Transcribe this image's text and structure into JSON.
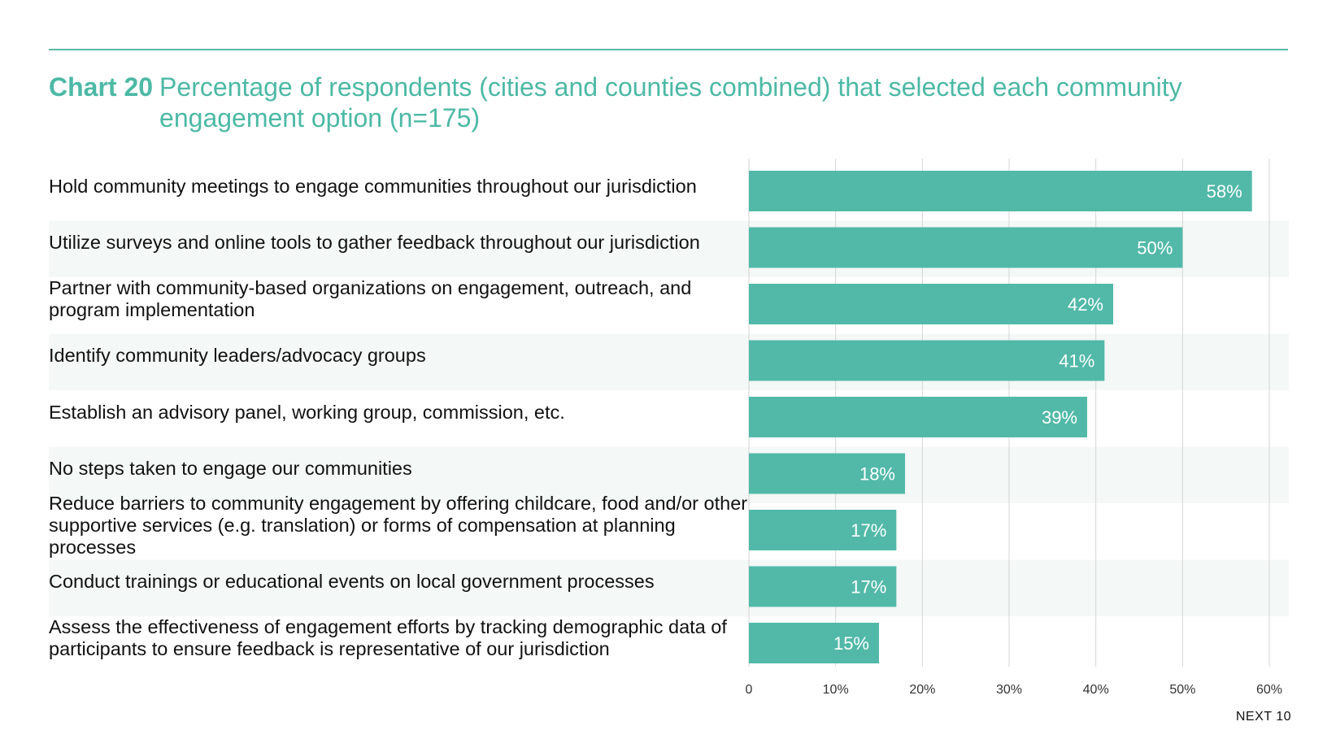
{
  "title": {
    "prefix": "Chart 20",
    "text": "Percentage of respondents (cities and counties combined) that selected each community engagement option (n=175)"
  },
  "footer": "NEXT 10",
  "colors": {
    "bar": "#52b9a8",
    "title": "#4cb9a5",
    "stripe": "#f4f8f7",
    "grid": "#d5d5d5"
  },
  "chart_data": {
    "type": "bar",
    "orientation": "horizontal",
    "categories": [
      "Hold community meetings to engage communities throughout our jurisdiction",
      "Utilize surveys and online tools to gather feedback throughout our jurisdiction",
      "Partner with community-based organizations on engagement, outreach, and program implementation",
      "Identify community leaders/advocacy groups",
      "Establish an advisory panel, working group, commission, etc.",
      "No steps taken to engage our communities",
      "Reduce barriers to community engagement by offering childcare, food and/or other supportive services (e.g. translation) or forms of compensation at planning processes",
      "Conduct trainings or educational events on local government processes",
      "Assess the effectiveness of engagement efforts by tracking demographic data of participants to ensure feedback is representative of our jurisdiction"
    ],
    "values": [
      58,
      50,
      42,
      41,
      39,
      18,
      17,
      17,
      15
    ],
    "data_labels": [
      "58%",
      "50%",
      "42%",
      "41%",
      "39%",
      "18%",
      "17%",
      "17%",
      "15%"
    ],
    "xlim": [
      0,
      60
    ],
    "xticks": [
      0,
      10,
      20,
      30,
      40,
      50,
      60
    ],
    "xtick_labels": [
      "0",
      "10%",
      "20%",
      "30%",
      "40%",
      "50%",
      "60%"
    ],
    "grid": true
  }
}
